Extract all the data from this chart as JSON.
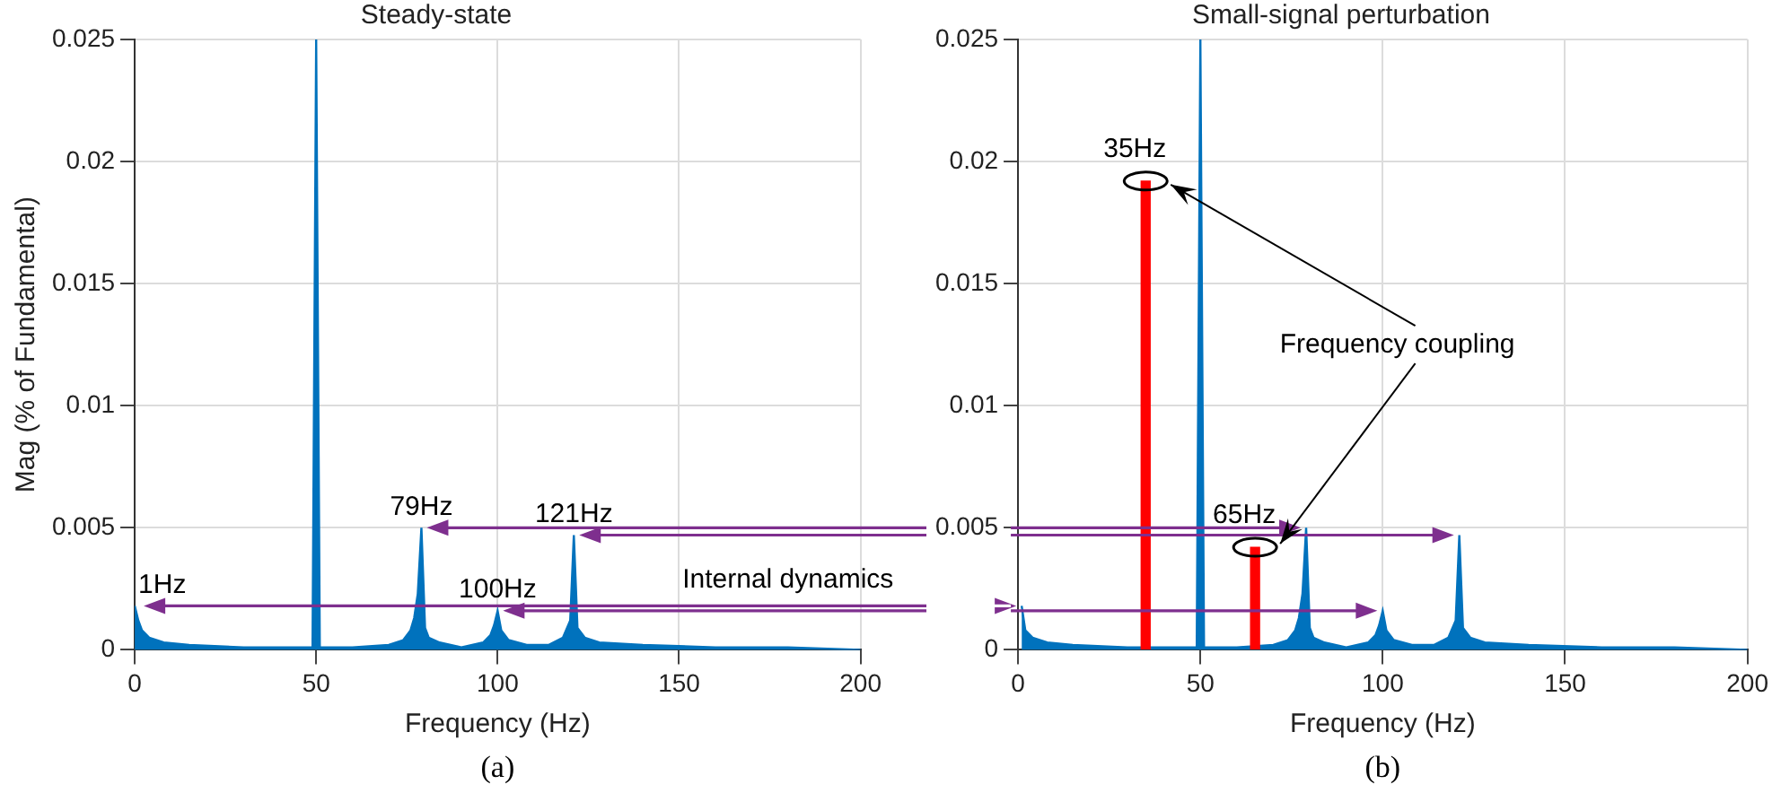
{
  "chart_data": [
    {
      "type": "area",
      "title": "Steady-state",
      "xlabel": "Frequency (Hz)",
      "ylabel": "Mag (% of Fundamental)",
      "xlim": [
        0,
        200
      ],
      "xticks": [
        0,
        50,
        100,
        150,
        200
      ],
      "ylim": [
        0,
        0.025
      ],
      "yticks": [
        0,
        0.005,
        0.01,
        0.015,
        0.02,
        0.025
      ],
      "grid": true,
      "legend": false,
      "series": [
        {
          "color": "#0072bd",
          "x": [
            0,
            1,
            2,
            4,
            8,
            15,
            30,
            45,
            49,
            50,
            51,
            60,
            70,
            74,
            76,
            77,
            78,
            79,
            80,
            81,
            84,
            90,
            96,
            98,
            99,
            100,
            101,
            103,
            108,
            114,
            118,
            120,
            121,
            122,
            124,
            128,
            140,
            160,
            180,
            200
          ],
          "values": [
            0.0018,
            0.0012,
            0.0008,
            0.0005,
            0.0003,
            0.0002,
            0.0001,
            0.0001,
            0.0001,
            0.025,
            0.0001,
            0.0001,
            0.0002,
            0.0004,
            0.0008,
            0.0013,
            0.0023,
            0.005,
            0.0009,
            0.0005,
            0.0003,
            0.0001,
            0.0003,
            0.0006,
            0.001,
            0.0016,
            0.0008,
            0.0004,
            0.0002,
            0.0002,
            0.0005,
            0.0012,
            0.0047,
            0.0009,
            0.0005,
            0.0003,
            0.0002,
            0.0001,
            0.0001,
            0
          ]
        }
      ],
      "annotations": [
        {
          "text": "1Hz",
          "x": 1,
          "y": 0.0018
        },
        {
          "text": "79Hz",
          "x": 79,
          "y": 0.005
        },
        {
          "text": "100Hz",
          "x": 100,
          "y": 0.0016
        },
        {
          "text": "121Hz",
          "x": 121,
          "y": 0.0047
        },
        "Internal dynamics",
        "(a)"
      ]
    },
    {
      "type": "area",
      "title": "Small-signal perturbation",
      "xlabel": "Frequency (Hz)",
      "xlim": [
        0,
        200
      ],
      "xticks": [
        0,
        50,
        100,
        150,
        200
      ],
      "ylim": [
        0,
        0.025
      ],
      "yticks": [
        0,
        0.005,
        0.01,
        0.015,
        0.02,
        0.025
      ],
      "grid": true,
      "legend": false,
      "series": [
        {
          "color": "#0072bd",
          "x": [
            1,
            2,
            4,
            8,
            15,
            30,
            45,
            49,
            50,
            51,
            60,
            70,
            74,
            76,
            77,
            78,
            79,
            80,
            81,
            84,
            90,
            96,
            98,
            99,
            100,
            101,
            103,
            108,
            114,
            118,
            120,
            121,
            122,
            124,
            128,
            140,
            160,
            180,
            200
          ],
          "values": [
            0.0018,
            0.0008,
            0.0005,
            0.0003,
            0.0002,
            0.0001,
            0.0001,
            0.0001,
            0.025,
            0.0001,
            0.0001,
            0.0002,
            0.0004,
            0.0008,
            0.0013,
            0.0023,
            0.005,
            0.0009,
            0.0005,
            0.0003,
            0.0001,
            0.0003,
            0.0006,
            0.001,
            0.0016,
            0.0008,
            0.0004,
            0.0002,
            0.0002,
            0.0005,
            0.0012,
            0.0047,
            0.0009,
            0.0005,
            0.0003,
            0.0002,
            0.0001,
            0.0001,
            0
          ]
        },
        {
          "type": "bar",
          "color": "#ff0000",
          "x": [
            35,
            65
          ],
          "values": [
            0.0192,
            0.0042
          ]
        }
      ],
      "annotations": [
        {
          "text": "35Hz",
          "x": 35,
          "y": 0.0192
        },
        {
          "text": "65Hz",
          "x": 65,
          "y": 0.0042
        },
        "Frequency coupling",
        "(b)"
      ]
    }
  ]
}
